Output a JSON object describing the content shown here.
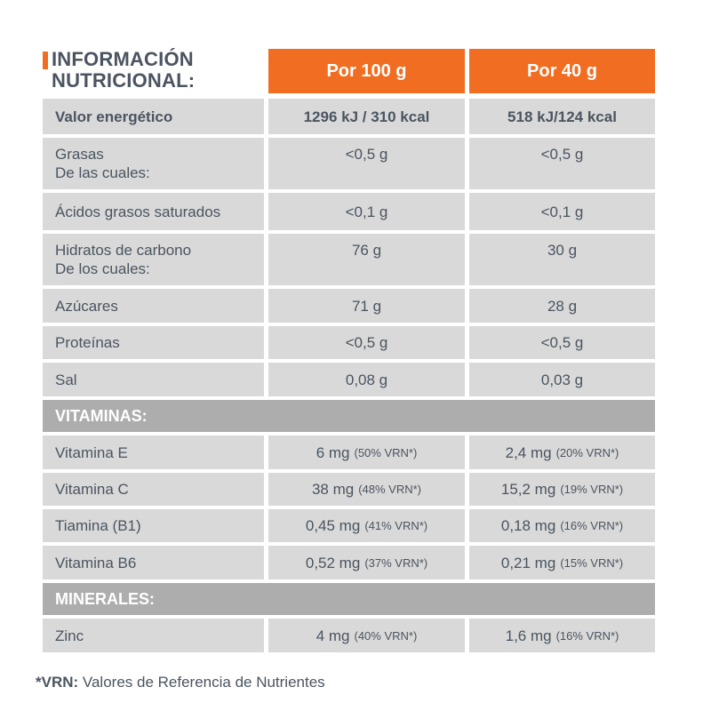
{
  "title": {
    "line1": "INFORMACIÓN",
    "line2": "NUTRICIONAL:"
  },
  "colors": {
    "accent_orange": "#F06D22",
    "row_gray": "#D9D9D9",
    "section_gray": "#ADADAD",
    "header_text": "#FFFFFF",
    "body_text": "#4B5460"
  },
  "table": {
    "column_headers": {
      "per100": "Por 100 g",
      "per40": "Por 40 g"
    },
    "sections": {
      "vitamins": "VITAMINAS:",
      "minerals": "MINERALES:"
    },
    "rows": {
      "energy": {
        "label": "Valor energético",
        "v100": "1296 kJ / 310 kcal",
        "v40": "518 kJ/124 kcal"
      },
      "fat": {
        "label": "Grasas",
        "label2": "De las cuales:",
        "v100": "<0,5 g",
        "v40": "<0,5 g"
      },
      "saturated": {
        "label": "Ácidos grasos saturados",
        "v100": "<0,1 g",
        "v40": "<0,1 g"
      },
      "carbs": {
        "label": "Hidratos de carbono",
        "label2": "De los cuales:",
        "v100": "76 g",
        "v40": "30 g"
      },
      "sugars": {
        "label": "Azúcares",
        "v100": "71 g",
        "v40": "28 g"
      },
      "protein": {
        "label": "Proteínas",
        "v100": "<0,5 g",
        "v40": "<0,5 g"
      },
      "salt": {
        "label": "Sal",
        "v100": "0,08 g",
        "v40": "0,03 g"
      },
      "vit_e": {
        "label": "Vitamina E",
        "v100": "6 mg",
        "n100": "(50% VRN*)",
        "v40": "2,4 mg",
        "n40": "(20% VRN*)"
      },
      "vit_c": {
        "label": "Vitamina C",
        "v100": "38 mg",
        "n100": "(48% VRN*)",
        "v40": "15,2 mg",
        "n40": "(19% VRN*)"
      },
      "thiamine": {
        "label": "Tiamina (B1)",
        "v100": "0,45 mg",
        "n100": "(41% VRN*)",
        "v40": "0,18 mg",
        "n40": "(16% VRN*)"
      },
      "vit_b6": {
        "label": "Vitamina B6",
        "v100": "0,52 mg",
        "n100": "(37% VRN*)",
        "v40": "0,21 mg",
        "n40": "(15% VRN*)"
      },
      "zinc": {
        "label": "Zinc",
        "v100": "4 mg",
        "n100": "(40% VRN*)",
        "v40": "1,6 mg",
        "n40": "(16% VRN*)"
      }
    }
  },
  "footnote": {
    "prefix": "*VRN:",
    "text": " Valores de Referencia de Nutrientes"
  }
}
